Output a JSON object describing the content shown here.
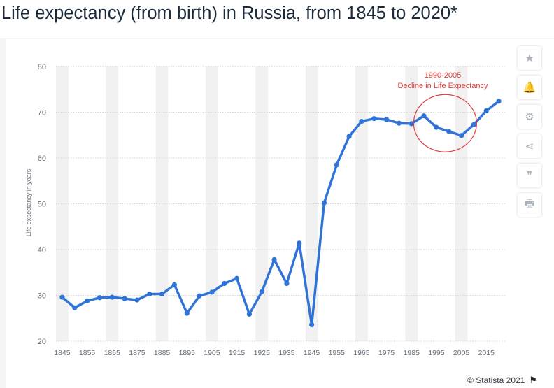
{
  "page": {
    "title": "Life expectancy (from birth) in Russia, from 1845 to 2020*"
  },
  "colors": {
    "line": "#2f74d6",
    "annotation": "#e23b3b",
    "stripe": "#f1f1f2",
    "grid": "#cfd3d8",
    "text": "#666e78"
  },
  "tools": [
    {
      "name": "star-icon",
      "glyph": "★"
    },
    {
      "name": "bell-icon",
      "glyph": "🔔"
    },
    {
      "name": "gear-icon",
      "glyph": "⚙"
    },
    {
      "name": "share-icon",
      "glyph": "⋖"
    },
    {
      "name": "quote-icon",
      "glyph": "❞"
    },
    {
      "name": "print-icon",
      "glyph": "🖶"
    }
  ],
  "footer": {
    "credit": "© Statista 2021",
    "flag_icon": "⚑"
  },
  "chart_data": {
    "type": "line",
    "title": "Life expectancy (from birth) in Russia, from 1845 to 2020*",
    "xlabel": "",
    "ylabel": "Life expectancy in years",
    "ylim": [
      20,
      80
    ],
    "yticks": [
      20,
      30,
      40,
      50,
      60,
      70,
      80
    ],
    "xticks": [
      1845,
      1855,
      1865,
      1875,
      1885,
      1895,
      1905,
      1915,
      1925,
      1935,
      1945,
      1955,
      1965,
      1975,
      1985,
      1995,
      2005,
      2015
    ],
    "grid": true,
    "series": [
      {
        "name": "Life expectancy",
        "x": [
          1845,
          1850,
          1855,
          1860,
          1865,
          1870,
          1875,
          1880,
          1885,
          1890,
          1895,
          1900,
          1905,
          1910,
          1915,
          1920,
          1925,
          1930,
          1935,
          1940,
          1945,
          1950,
          1955,
          1960,
          1965,
          1970,
          1975,
          1980,
          1985,
          1990,
          1995,
          2000,
          2005,
          2010,
          2015,
          2020
        ],
        "values": [
          29.6,
          27.3,
          28.8,
          29.5,
          29.6,
          29.3,
          29.0,
          30.3,
          30.3,
          32.3,
          26.1,
          29.9,
          30.7,
          32.6,
          33.7,
          25.9,
          30.8,
          37.8,
          32.6,
          41.4,
          23.6,
          50.2,
          58.5,
          64.7,
          68.0,
          68.6,
          68.4,
          67.6,
          67.5,
          69.2,
          66.7,
          65.8,
          64.9,
          67.3,
          70.3,
          72.4
        ]
      }
    ],
    "annotation": {
      "period": "1990-2005",
      "text": "Decline in Life Expectancy"
    }
  }
}
